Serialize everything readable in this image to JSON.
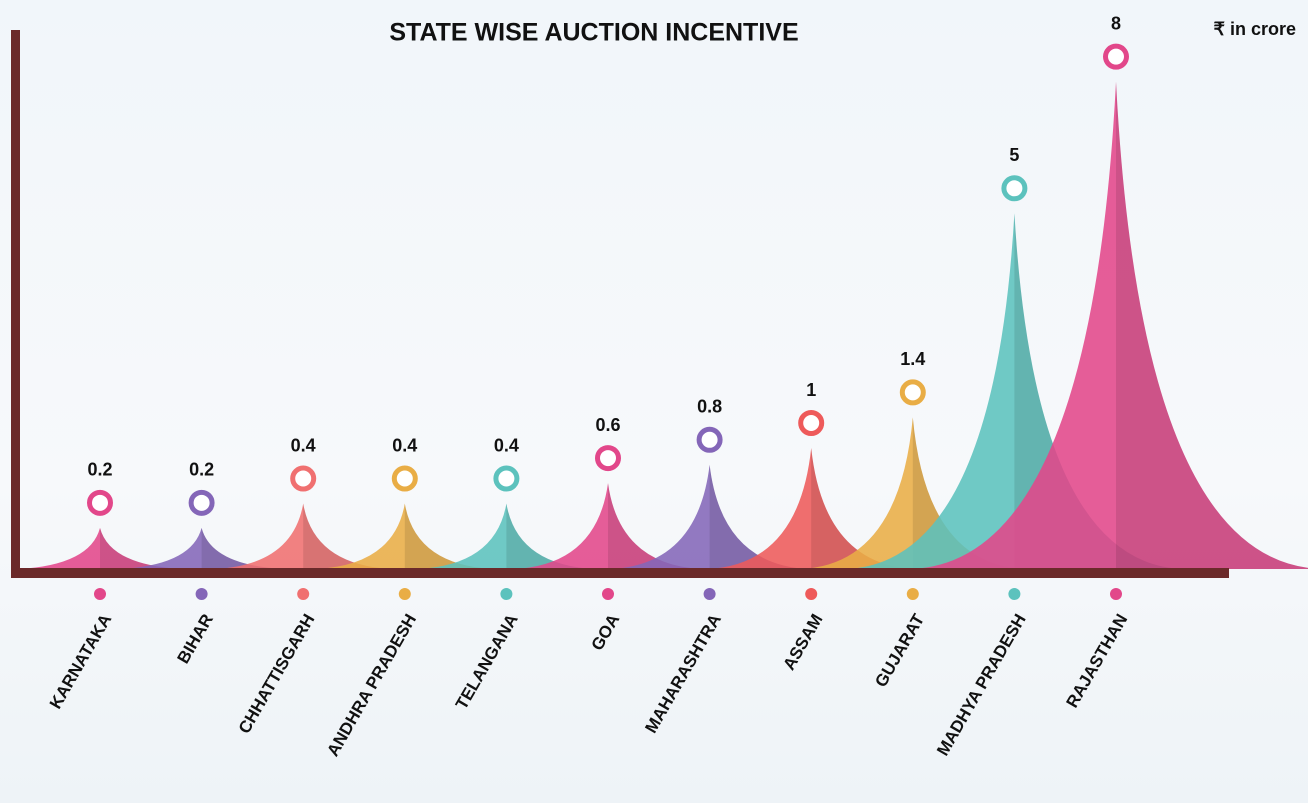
{
  "chart_data": {
    "type": "peak",
    "title": "STATE WISE AUCTION INCENTIVE",
    "unit_label": "₹ in crore",
    "categories": [
      "KARNATAKA",
      "BIHAR",
      "CHHATTISGARH",
      "ANDHRA PRADESH",
      "TELANGANA",
      "GOA",
      "MAHARASHTRA",
      "ASSAM",
      "GUJARAT",
      "MADHYA PRADESH",
      "RAJASTHAN"
    ],
    "values": [
      0.2,
      0.2,
      0.4,
      0.4,
      0.4,
      0.6,
      0.8,
      1,
      1.4,
      5,
      8
    ],
    "colors": [
      "#e2478a",
      "#8466b8",
      "#f07070",
      "#e9ad45",
      "#5cc2bd",
      "#e2478a",
      "#8466b8",
      "#ee5a5a",
      "#e9ad45",
      "#5cc2bd",
      "#e2478a"
    ]
  }
}
